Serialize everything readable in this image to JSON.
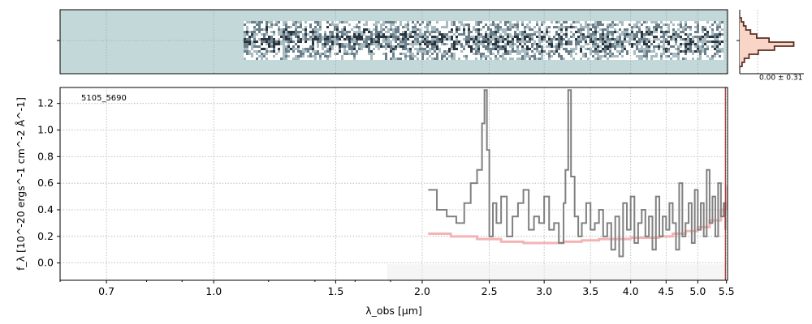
{
  "chart_data": [
    {
      "type": "heatmap",
      "panel": "2d-spectrum",
      "description_colormap": "gray-blue",
      "background_color": "#c3d9d9",
      "grid": true
    },
    {
      "type": "line",
      "panel": "1d-spectrum",
      "annotation": "5105_5690",
      "xlabel": "λ_obs [μm]",
      "ylabel": "f_λ [10^-20 ergs^-1 cm^-2 Å^-1]",
      "xscale": "log",
      "xlim": [
        0.6,
        5.52
      ],
      "ylim": [
        -0.13,
        1.32
      ],
      "x_ticks": [
        0.7,
        1.0,
        1.5,
        2.0,
        2.5,
        3.0,
        3.5,
        4.0,
        4.5,
        5.0,
        5.5
      ],
      "x_tick_labels": [
        "0.7",
        "1.0",
        "1.5",
        "2.0",
        "2.5",
        "3.0",
        "3.5",
        "4.0",
        "4.5",
        "5.0",
        "5.5"
      ],
      "y_ticks": [
        0.0,
        0.2,
        0.4,
        0.6,
        0.8,
        1.0,
        1.2
      ],
      "y_tick_labels": [
        "0.0",
        "0.2",
        "0.4",
        "0.6",
        "0.8",
        "1.0",
        "1.2"
      ],
      "grid": true,
      "colors": {
        "flux": "#808080",
        "error": "#f4b4b4",
        "marker": "#a03030"
      },
      "series": [
        {
          "name": "",
          "role": "flux",
          "x": [
            2.04,
            2.1,
            2.17,
            2.24,
            2.3,
            2.35,
            2.4,
            2.44,
            2.46,
            2.48,
            2.5,
            2.53,
            2.56,
            2.6,
            2.65,
            2.7,
            2.75,
            2.8,
            2.85,
            2.9,
            2.95,
            3.0,
            3.05,
            3.1,
            3.15,
            3.2,
            3.22,
            3.25,
            3.28,
            3.32,
            3.36,
            3.4,
            3.45,
            3.5,
            3.55,
            3.6,
            3.65,
            3.7,
            3.75,
            3.8,
            3.85,
            3.9,
            3.95,
            4.0,
            4.05,
            4.1,
            4.15,
            4.2,
            4.25,
            4.3,
            4.35,
            4.4,
            4.45,
            4.5,
            4.55,
            4.6,
            4.65,
            4.7,
            4.75,
            4.8,
            4.85,
            4.9,
            4.95,
            5.0,
            5.05,
            5.1,
            5.15,
            5.2,
            5.25,
            5.3,
            5.35,
            5.4,
            5.45,
            5.48
          ],
          "y": [
            0.55,
            0.4,
            0.35,
            0.3,
            0.45,
            0.6,
            0.7,
            1.05,
            1.3,
            0.85,
            0.2,
            0.45,
            0.3,
            0.5,
            0.2,
            0.35,
            0.45,
            0.55,
            0.25,
            0.35,
            0.3,
            0.5,
            0.25,
            0.3,
            0.15,
            0.45,
            0.7,
            1.3,
            0.65,
            0.35,
            0.2,
            0.3,
            0.45,
            0.25,
            0.3,
            0.4,
            0.2,
            0.3,
            0.1,
            0.35,
            0.05,
            0.45,
            0.25,
            0.5,
            0.15,
            0.3,
            0.4,
            0.2,
            0.35,
            0.1,
            0.5,
            0.2,
            0.35,
            0.25,
            0.45,
            0.3,
            0.1,
            0.6,
            0.2,
            0.3,
            0.45,
            0.15,
            0.55,
            0.25,
            0.45,
            0.2,
            0.7,
            0.3,
            0.5,
            0.2,
            0.6,
            0.35,
            0.45,
            0.25
          ]
        },
        {
          "name": "",
          "role": "error",
          "x": [
            2.04,
            2.2,
            2.4,
            2.6,
            2.8,
            3.0,
            3.2,
            3.4,
            3.6,
            3.8,
            4.0,
            4.2,
            4.4,
            4.6,
            4.8,
            5.0,
            5.2,
            5.4,
            5.5
          ],
          "y": [
            0.22,
            0.2,
            0.18,
            0.16,
            0.15,
            0.15,
            0.16,
            0.17,
            0.18,
            0.18,
            0.19,
            0.19,
            0.2,
            0.22,
            0.24,
            0.27,
            0.32,
            0.4,
            0.58
          ]
        }
      ]
    },
    {
      "type": "bar",
      "panel": "histogram",
      "annotation": "0.00 ± 0.31",
      "orientation": "horizontal",
      "grid": true
    }
  ]
}
